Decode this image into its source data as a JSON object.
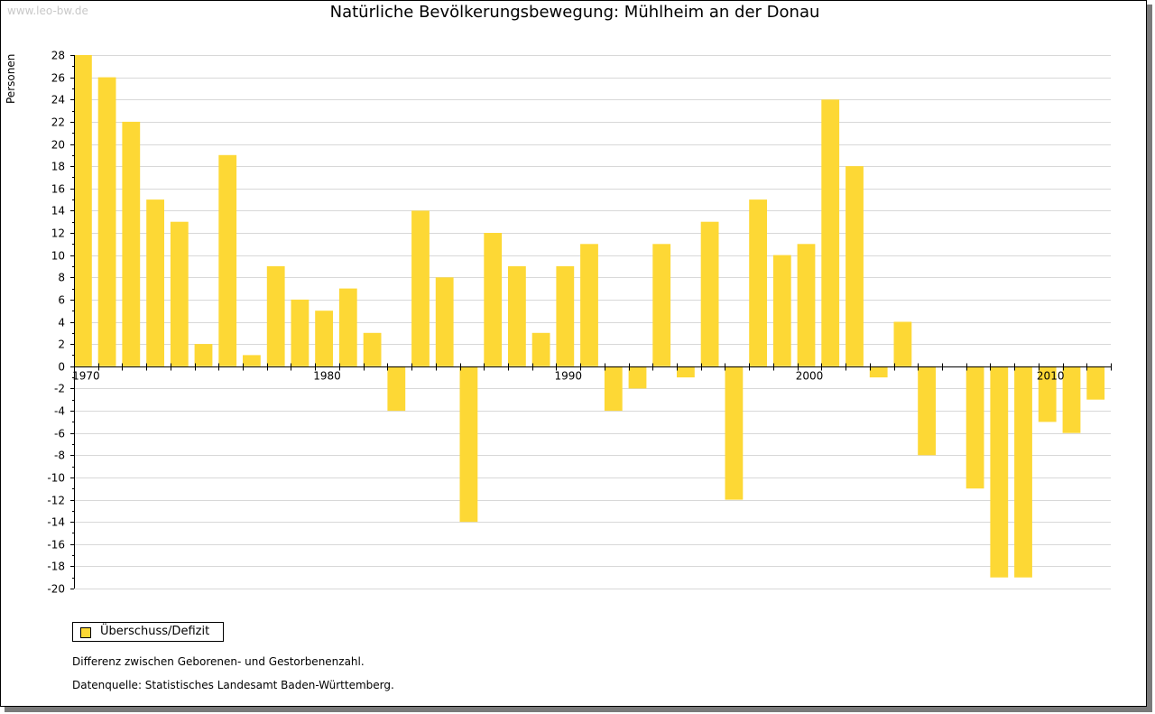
{
  "watermark": "www.leo-bw.de",
  "legend_label": "Überschuss/Defizit",
  "notes": [
    "Differenz zwischen Geborenen- und Gestorbenenzahl.",
    "Datenquelle: Statistisches Landesamt Baden-Württemberg."
  ],
  "colors": {
    "bar": "#fdd835",
    "grid": "#d8d8d8",
    "axis": "#000000"
  },
  "chart_data": {
    "type": "bar",
    "title": "Natürliche Bevölkerungsbewegung: Mühlheim an der Donau",
    "xlabel": "",
    "ylabel": "Personen",
    "ylim": [
      -20,
      28
    ],
    "ytick_step": 2,
    "grid": true,
    "legend_position": "bottom-left",
    "x_tick_labels": [
      "1970",
      "1980",
      "1990",
      "2000",
      "2010"
    ],
    "categories": [
      1970,
      1971,
      1972,
      1973,
      1974,
      1975,
      1976,
      1977,
      1978,
      1979,
      1980,
      1981,
      1982,
      1983,
      1984,
      1985,
      1986,
      1987,
      1988,
      1989,
      1990,
      1991,
      1992,
      1993,
      1994,
      1995,
      1996,
      1997,
      1998,
      1999,
      2000,
      2001,
      2002,
      2003,
      2004,
      2005,
      2006,
      2007,
      2008,
      2009,
      2010,
      2011,
      2012
    ],
    "series": [
      {
        "name": "Überschuss/Defizit",
        "values": [
          28,
          26,
          22,
          15,
          13,
          2,
          19,
          1,
          9,
          6,
          5,
          7,
          3,
          -4,
          14,
          8,
          -14,
          12,
          9,
          3,
          9,
          11,
          -4,
          -2,
          11,
          -1,
          13,
          -12,
          15,
          10,
          11,
          24,
          18,
          -1,
          4,
          -8,
          0,
          -11,
          -19,
          -19,
          -5,
          -6,
          -3
        ]
      }
    ]
  }
}
